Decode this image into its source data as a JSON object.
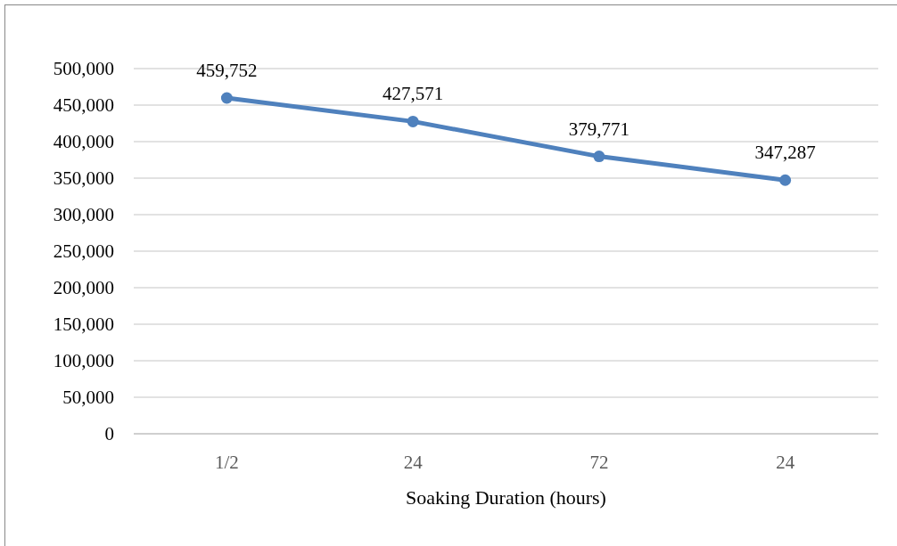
{
  "chart_data": {
    "type": "line",
    "xlabel": "Soaking Duration (hours)",
    "categories": [
      "1/2",
      "24",
      "72",
      "24"
    ],
    "series": [
      {
        "color": "#4f81bd",
        "values": [
          459752,
          427571,
          379771,
          347287
        ],
        "value_labels": [
          "459,752",
          "427,571",
          "379,771",
          "347,287"
        ]
      }
    ],
    "ylim": [
      0,
      500000
    ],
    "yticks": [
      {
        "value": 0,
        "label": "0"
      },
      {
        "value": 50000,
        "label": "50,000"
      },
      {
        "value": 100000,
        "label": "100,000"
      },
      {
        "value": 150000,
        "label": "150,000"
      },
      {
        "value": 200000,
        "label": "200,000"
      },
      {
        "value": 250000,
        "label": "250,000"
      },
      {
        "value": 300000,
        "label": "300,000"
      },
      {
        "value": 350000,
        "label": "350,000"
      },
      {
        "value": 400000,
        "label": "400,000"
      },
      {
        "value": 450000,
        "label": "450,000"
      },
      {
        "value": 500000,
        "label": "500,000"
      }
    ],
    "grid": "y",
    "marker": "circle",
    "line_style": "solid"
  }
}
